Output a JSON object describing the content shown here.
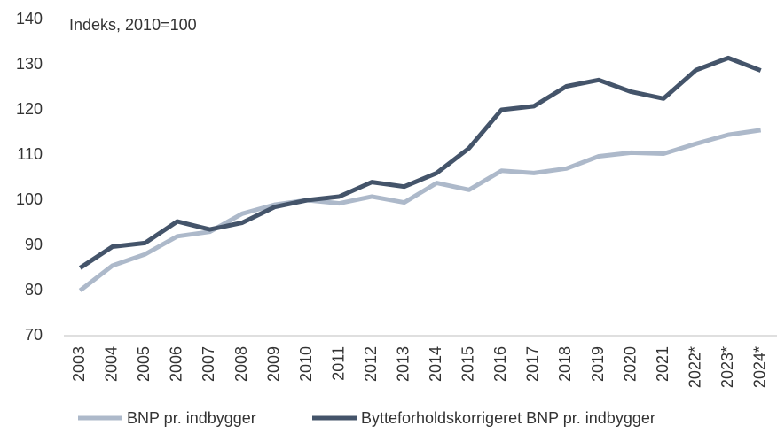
{
  "chart_data": {
    "type": "line",
    "subtitle": "Indeks, 2010=100",
    "categories": [
      "2003",
      "2004",
      "2005",
      "2006",
      "2007",
      "2008",
      "2009",
      "2010",
      "2011",
      "2012",
      "2013",
      "2014",
      "2015",
      "2016",
      "2017",
      "2018",
      "2019",
      "2020",
      "2021",
      "2022*",
      "2023*",
      "2024*"
    ],
    "series": [
      {
        "name": "BNP pr. indbygger",
        "color": "#adb9ca",
        "values": [
          80,
          85.5,
          88,
          92,
          93,
          97,
          99,
          100,
          99.3,
          100.8,
          99.5,
          103.8,
          102.3,
          106.5,
          106,
          107,
          109.7,
          110.5,
          110.3,
          112.5,
          114.5,
          115.5
        ]
      },
      {
        "name": "Bytteforholdskorrigeret BNP pr. indbygger",
        "color": "#44546a",
        "values": [
          85,
          89.7,
          90.5,
          95.3,
          93.5,
          95,
          98.5,
          100,
          100.8,
          104,
          103,
          106,
          111.5,
          120,
          120.8,
          125.2,
          126.6,
          124,
          122.5,
          128.8,
          131.5,
          128.7
        ]
      }
    ],
    "ylim": [
      70,
      140
    ],
    "yticks": [
      70,
      80,
      90,
      100,
      110,
      120,
      130,
      140
    ],
    "grid": false,
    "legend": "bottom"
  }
}
